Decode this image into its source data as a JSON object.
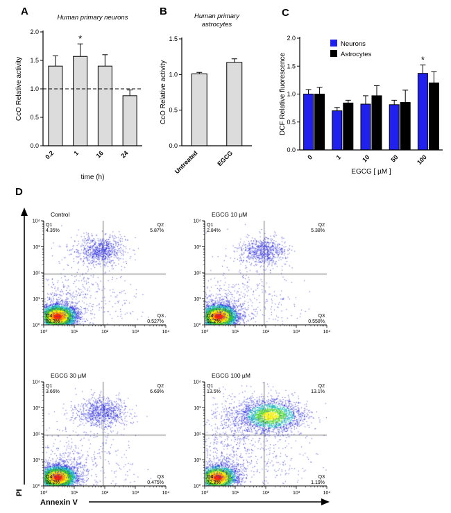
{
  "figure": {
    "panel_labels": {
      "A": "A",
      "B": "B",
      "C": "C",
      "D": "D"
    }
  },
  "chart_data": [
    {
      "id": "A",
      "type": "bar",
      "title": "Human primary neurons",
      "ylabel": "CcO Relative activity",
      "xlabel": "time (h)",
      "ylim": [
        0,
        2.0
      ],
      "yticks": [
        "0.0",
        "0.5",
        "1.0",
        "1.5",
        "2.0"
      ],
      "categories": [
        "0.2",
        "1",
        "16",
        "24"
      ],
      "values": [
        1.4,
        1.57,
        1.4,
        0.88
      ],
      "errors": [
        0.18,
        0.22,
        0.2,
        0.1
      ],
      "significance": [
        {
          "index": 1,
          "text": "*"
        }
      ],
      "reference_line": 1.0,
      "bar_color": "#dcdcdc",
      "grid": false
    },
    {
      "id": "B",
      "type": "bar",
      "title": "Human primary astrocytes",
      "title_lines": [
        "Human primary",
        "astrocytes"
      ],
      "ylabel": "CcO Relative activity",
      "ylim": [
        0,
        1.5
      ],
      "yticks": [
        "0.0",
        "0.5",
        "1.0",
        "1.5"
      ],
      "categories": [
        "Untreated",
        "EGCG"
      ],
      "values": [
        1.01,
        1.17
      ],
      "errors": [
        0.02,
        0.05
      ],
      "significance": [],
      "bar_color": "#dcdcdc",
      "grid": false
    },
    {
      "id": "C",
      "type": "bar_grouped",
      "ylabel": "DCF Relative fluorescence",
      "xlabel": "EGCG [ µM ]",
      "ylim": [
        0,
        2.0
      ],
      "yticks": [
        "0.0",
        "0.5",
        "1.0",
        "1.5",
        "2.0"
      ],
      "categories": [
        "0",
        "1",
        "10",
        "50",
        "100"
      ],
      "legend_position": "top-left-inside",
      "series": [
        {
          "name": "Neurons",
          "color": "#2121ee",
          "values": [
            1.0,
            0.7,
            0.82,
            0.81,
            1.37
          ],
          "errors": [
            0.08,
            0.06,
            0.15,
            0.08,
            0.15
          ]
        },
        {
          "name": "Astrocytes",
          "color": "#000000",
          "values": [
            1.0,
            0.84,
            0.97,
            0.85,
            1.2
          ],
          "errors": [
            0.12,
            0.05,
            0.18,
            0.22,
            0.2
          ]
        }
      ],
      "significance": [
        {
          "series": 0,
          "index": 4,
          "text": "*"
        }
      ],
      "grid": false
    },
    {
      "id": "D",
      "type": "scatter_flow",
      "xlabel": "Annexin V",
      "ylabel": "PI",
      "log_range": [
        0,
        4
      ],
      "axis_ticks": [
        "10⁰",
        "10¹",
        "10²",
        "10³",
        "10⁴"
      ],
      "quadrant_split": [
        1.95,
        1.95
      ],
      "q4_percent_color": "#00916e",
      "plots": [
        {
          "title": "Control",
          "quadrants": {
            "Q1": "4.35%",
            "Q2": "5.87%",
            "Q3": "0.527%",
            "Q4": "89.3%"
          },
          "clusters": [
            {
              "type": "dense",
              "x": 0.45,
              "y": 0.33,
              "sx": 0.3,
              "sy": 0.22,
              "n": 4500
            },
            {
              "type": "cloud",
              "x": 0.55,
              "y": 0.55,
              "sx": 0.55,
              "sy": 0.55,
              "n": 500
            },
            {
              "type": "cloud",
              "x": 1.85,
              "y": 2.85,
              "sx": 0.4,
              "sy": 0.28,
              "n": 800
            },
            {
              "type": "cloud",
              "x": 1.4,
              "y": 1.6,
              "sx": 0.75,
              "sy": 0.85,
              "n": 180
            },
            {
              "type": "cloud",
              "x": 2.3,
              "y": 0.7,
              "sx": 0.55,
              "sy": 0.4,
              "n": 50
            }
          ]
        },
        {
          "title": "EGCG 10 µM",
          "quadrants": {
            "Q1": "2.84%",
            "Q2": "5.38%",
            "Q3": "0.558%",
            "Q4": "91.2%"
          },
          "clusters": [
            {
              "type": "dense",
              "x": 0.45,
              "y": 0.33,
              "sx": 0.3,
              "sy": 0.22,
              "n": 4600
            },
            {
              "type": "cloud",
              "x": 0.55,
              "y": 0.55,
              "sx": 0.55,
              "sy": 0.55,
              "n": 500
            },
            {
              "type": "cloud",
              "x": 1.9,
              "y": 2.85,
              "sx": 0.38,
              "sy": 0.27,
              "n": 700
            },
            {
              "type": "cloud",
              "x": 1.4,
              "y": 1.6,
              "sx": 0.75,
              "sy": 0.85,
              "n": 160
            },
            {
              "type": "cloud",
              "x": 2.3,
              "y": 0.7,
              "sx": 0.55,
              "sy": 0.4,
              "n": 50
            }
          ]
        },
        {
          "title": "EGCG 30 µM",
          "quadrants": {
            "Q1": "3.66%",
            "Q2": "6.69%",
            "Q3": "0.475%",
            "Q4": "89.2%"
          },
          "clusters": [
            {
              "type": "dense",
              "x": 0.45,
              "y": 0.33,
              "sx": 0.3,
              "sy": 0.22,
              "n": 4500
            },
            {
              "type": "cloud",
              "x": 0.55,
              "y": 0.55,
              "sx": 0.55,
              "sy": 0.55,
              "n": 500
            },
            {
              "type": "cloud",
              "x": 1.9,
              "y": 2.85,
              "sx": 0.42,
              "sy": 0.28,
              "n": 850
            },
            {
              "type": "cloud",
              "x": 1.4,
              "y": 1.6,
              "sx": 0.75,
              "sy": 0.85,
              "n": 180
            },
            {
              "type": "cloud",
              "x": 2.3,
              "y": 0.7,
              "sx": 0.55,
              "sy": 0.4,
              "n": 50
            }
          ]
        },
        {
          "title": "EGCG 100 µM",
          "quadrants": {
            "Q1": "13.5%",
            "Q2": "13.1%",
            "Q3": "1.19%",
            "Q4": "72.2%"
          },
          "clusters": [
            {
              "type": "dense",
              "x": 0.42,
              "y": 0.33,
              "sx": 0.3,
              "sy": 0.22,
              "n": 3300
            },
            {
              "type": "cloud",
              "x": 0.55,
              "y": 0.6,
              "sx": 0.6,
              "sy": 0.6,
              "n": 550
            },
            {
              "type": "dense2",
              "x": 2.15,
              "y": 2.7,
              "sx": 0.5,
              "sy": 0.3,
              "n": 2400
            },
            {
              "type": "cloud",
              "x": 1.6,
              "y": 1.9,
              "sx": 0.85,
              "sy": 0.9,
              "n": 350
            },
            {
              "type": "cloud",
              "x": 0.95,
              "y": 2.55,
              "sx": 0.5,
              "sy": 0.55,
              "n": 260
            },
            {
              "type": "cloud",
              "x": 2.6,
              "y": 0.8,
              "sx": 0.55,
              "sy": 0.45,
              "n": 70
            }
          ]
        }
      ]
    }
  ]
}
